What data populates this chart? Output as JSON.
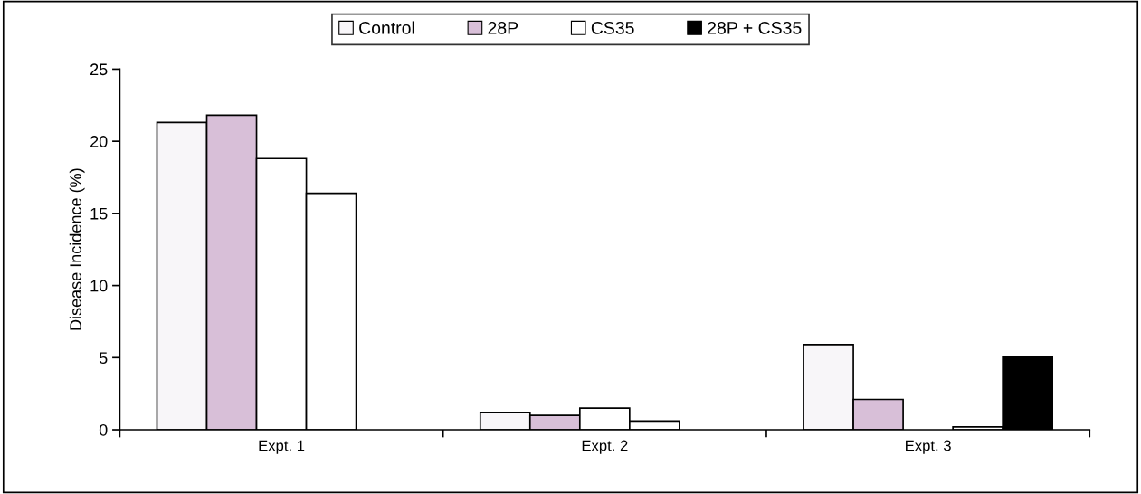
{
  "chart_data": {
    "type": "bar",
    "ylabel": "Disease Incidence (%)",
    "categories": [
      "Expt. 1",
      "Expt. 2",
      "Expt. 3"
    ],
    "series": [
      {
        "name": "Control",
        "color": "#f8f6f9",
        "values": [
          21.3,
          1.2,
          5.9
        ]
      },
      {
        "name": "28P",
        "color": "#d8bfd8",
        "values": [
          21.8,
          1.0,
          2.1
        ]
      },
      {
        "name": "CS35",
        "color": "#ffffff",
        "values": [
          18.8,
          1.5,
          null
        ]
      },
      {
        "color": "#ffffff",
        "values": [
          16.4,
          0.6,
          0.2
        ]
      },
      {
        "name": "28P + CS35",
        "color": "#000000",
        "values": [
          null,
          null,
          5.1
        ]
      }
    ],
    "ylim": [
      0,
      25
    ],
    "yticks": [
      0,
      5,
      10,
      15,
      20,
      25
    ],
    "grid": false,
    "legend": "top"
  }
}
